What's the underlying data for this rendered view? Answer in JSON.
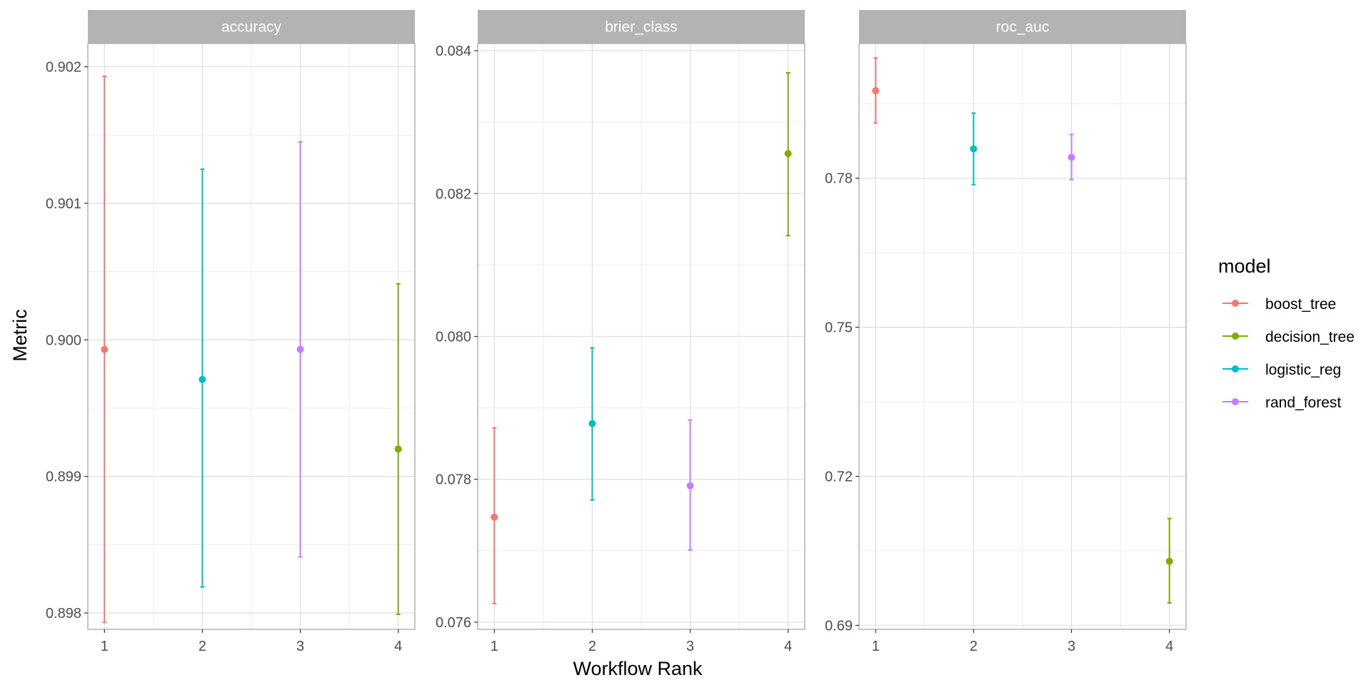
{
  "chart_data": {
    "type": "scatter",
    "xlabel": "Workflow Rank",
    "ylabel": "Metric",
    "legend": {
      "title": "model",
      "placement": "right",
      "entries": [
        {
          "name": "boost_tree",
          "color": "#F8766D"
        },
        {
          "name": "decision_tree",
          "color": "#7CAE00"
        },
        {
          "name": "logistic_reg",
          "color": "#00BFC4"
        },
        {
          "name": "rand_forest",
          "color": "#C77CFF"
        }
      ]
    },
    "grid": true,
    "panels": [
      {
        "metric": "accuracy",
        "xlim": [
          0.83,
          4.17
        ],
        "ylim": [
          0.89788,
          0.90217
        ],
        "y_ticks": [
          {
            "value": 0.898,
            "label": "0.898"
          },
          {
            "value": 0.899,
            "label": "0.899"
          },
          {
            "value": 0.9,
            "label": "0.900"
          },
          {
            "value": 0.901,
            "label": "0.901"
          },
          {
            "value": 0.902,
            "label": "0.902"
          }
        ],
        "y_minor": [
          0.8985,
          0.8995,
          0.9005,
          0.9015
        ],
        "x_ticks": [
          1,
          2,
          3,
          4
        ],
        "points": [
          {
            "rank": 1,
            "model": "boost_tree",
            "mean": 0.89993,
            "lower": 0.89793,
            "upper": 0.90193
          },
          {
            "rank": 2,
            "model": "logistic_reg",
            "mean": 0.89971,
            "lower": 0.89819,
            "upper": 0.90125
          },
          {
            "rank": 3,
            "model": "rand_forest",
            "mean": 0.89993,
            "lower": 0.89841,
            "upper": 0.90145
          },
          {
            "rank": 4,
            "model": "decision_tree",
            "mean": 0.8992,
            "lower": 0.89799,
            "upper": 0.90041
          }
        ]
      },
      {
        "metric": "brier_class",
        "xlim": [
          0.83,
          4.17
        ],
        "ylim": [
          0.0759,
          0.0841
        ],
        "y_ticks": [
          {
            "value": 0.076,
            "label": "0.076"
          },
          {
            "value": 0.078,
            "label": "0.078"
          },
          {
            "value": 0.08,
            "label": "0.080"
          },
          {
            "value": 0.082,
            "label": "0.082"
          },
          {
            "value": 0.084,
            "label": "0.084"
          }
        ],
        "y_minor": [
          0.077,
          0.079,
          0.081,
          0.083
        ],
        "x_ticks": [
          1,
          2,
          3,
          4
        ],
        "points": [
          {
            "rank": 1,
            "model": "boost_tree",
            "mean": 0.07747,
            "lower": 0.07626,
            "upper": 0.07872
          },
          {
            "rank": 2,
            "model": "logistic_reg",
            "mean": 0.07878,
            "lower": 0.07771,
            "upper": 0.07984
          },
          {
            "rank": 3,
            "model": "rand_forest",
            "mean": 0.07791,
            "lower": 0.07701,
            "upper": 0.07883
          },
          {
            "rank": 4,
            "model": "decision_tree",
            "mean": 0.08256,
            "lower": 0.08141,
            "upper": 0.08369
          }
        ]
      },
      {
        "metric": "roc_auc",
        "xlim": [
          0.83,
          4.17
        ],
        "ylim": [
          0.6892,
          0.8071
        ],
        "y_ticks": [
          {
            "value": 0.69,
            "label": "0.69"
          },
          {
            "value": 0.72,
            "label": "0.72"
          },
          {
            "value": 0.75,
            "label": "0.75"
          },
          {
            "value": 0.78,
            "label": "0.78"
          }
        ],
        "y_minor": [
          0.705,
          0.735,
          0.765,
          0.795
        ],
        "x_ticks": [
          1,
          2,
          3,
          4
        ],
        "points": [
          {
            "rank": 1,
            "model": "boost_tree",
            "mean": 0.7976,
            "lower": 0.7911,
            "upper": 0.8042
          },
          {
            "rank": 2,
            "model": "logistic_reg",
            "mean": 0.7859,
            "lower": 0.7787,
            "upper": 0.7931
          },
          {
            "rank": 3,
            "model": "rand_forest",
            "mean": 0.7842,
            "lower": 0.7797,
            "upper": 0.7888
          },
          {
            "rank": 4,
            "model": "decision_tree",
            "mean": 0.7029,
            "lower": 0.6945,
            "upper": 0.7115
          }
        ]
      }
    ]
  }
}
